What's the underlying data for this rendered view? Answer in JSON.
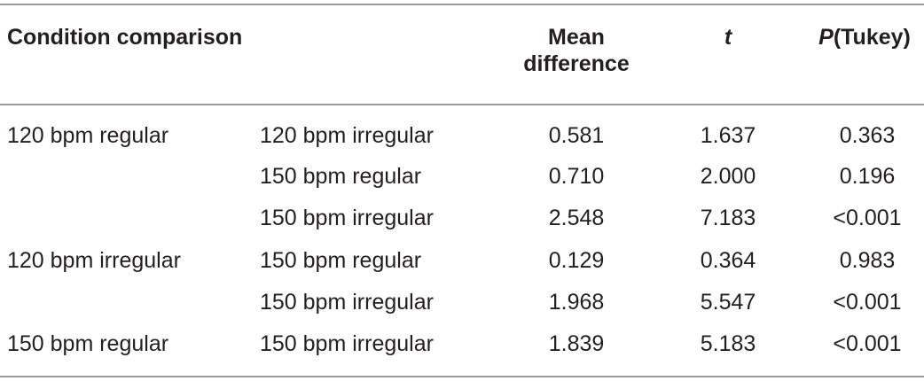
{
  "header": {
    "condition_comparison": "Condition comparison",
    "mean_difference": "Mean difference",
    "t": "t",
    "p_tukey": [
      "P",
      "(Tukey)"
    ]
  },
  "table": {
    "rows": [
      [
        "120 bpm regular",
        "120 bpm irregular",
        "0.581",
        "1.637",
        "0.363"
      ],
      [
        null,
        "150 bpm regular",
        "0.710",
        "2.000",
        "0.196"
      ],
      [
        null,
        "150 bpm irregular",
        "2.548",
        "7.183",
        "<0.001"
      ],
      [
        "120 bpm irregular",
        "150 bpm regular",
        "0.129",
        "0.364",
        "0.983"
      ],
      [
        null,
        "150 bpm irregular",
        "1.968",
        "5.547",
        "<0.001"
      ],
      [
        "150 bpm regular",
        "150 bpm irregular",
        "1.839",
        "5.183",
        "<0.001"
      ]
    ]
  }
}
